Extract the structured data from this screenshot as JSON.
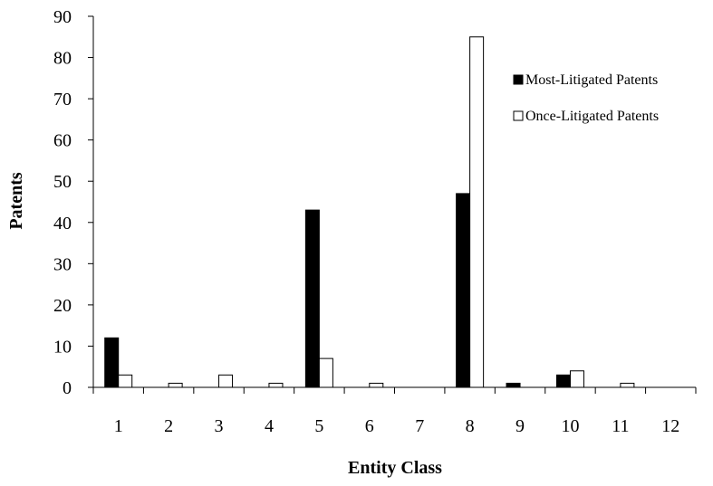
{
  "chart_data": {
    "type": "bar",
    "xlabel": "Entity Class",
    "ylabel": "Patents",
    "ylim": [
      0,
      90
    ],
    "yticks": [
      0,
      10,
      20,
      30,
      40,
      50,
      60,
      70,
      80,
      90
    ],
    "categories": [
      "1",
      "2",
      "3",
      "4",
      "5",
      "6",
      "7",
      "8",
      "9",
      "10",
      "11",
      "12"
    ],
    "series": [
      {
        "name": "Most-Litigated Patents",
        "color": "#000000",
        "values": [
          12,
          0,
          0,
          0,
          43,
          0,
          0,
          47,
          1,
          3,
          0,
          0
        ]
      },
      {
        "name": "Once-Litigated Patents",
        "color": "#ffffff",
        "values": [
          3,
          1,
          3,
          1,
          7,
          1,
          0,
          85,
          0,
          4,
          1,
          0
        ]
      }
    ],
    "legend_position": "top-right",
    "grid": false
  }
}
